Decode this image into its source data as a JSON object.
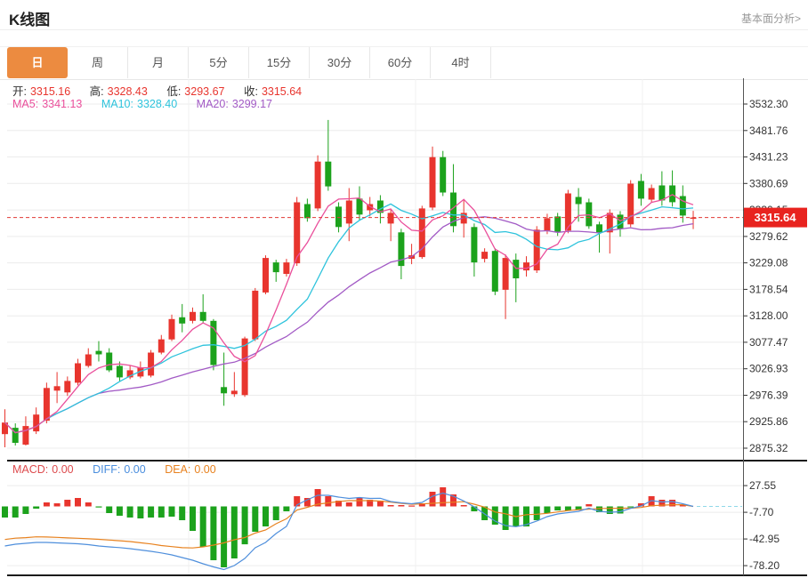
{
  "header": {
    "title": "K线图",
    "link": "基本面分析>"
  },
  "tabs": {
    "items": [
      "日",
      "周",
      "月",
      "5分",
      "15分",
      "30分",
      "60分",
      "4时"
    ],
    "selected": "日"
  },
  "info": {
    "open_label": "开:",
    "open": "3315.16",
    "high_label": "高:",
    "high": "3328.43",
    "low_label": "低:",
    "low": "3293.67",
    "close_label": "收:",
    "close": "3315.64",
    "ma5_label": "MA5:",
    "ma5": "3341.13",
    "ma10_label": "MA10:",
    "ma10": "3328.40",
    "ma20_label": "MA20:",
    "ma20": "3299.17"
  },
  "macd_info": {
    "macd_label": "MACD:",
    "macd": "0.00",
    "diff_label": "DIFF:",
    "diff": "0.00",
    "dea_label": "DEA:",
    "dea": "0.00"
  },
  "price_tag": "3315.64",
  "colors": {
    "up": "#e8352e",
    "down": "#1ca21c",
    "ma5": "#ea4f9b",
    "ma10": "#2ec3dc",
    "ma20": "#a25ac5",
    "diff": "#4f8fdc",
    "dea": "#e8821f",
    "tab_accent": "#ec8b40",
    "price_tag_bg": "#e8231f",
    "dashed_line": "#e03a34",
    "grid": "#ececec",
    "axis": "#555"
  },
  "chart_data": {
    "type": "candlestick",
    "title": "K线图 日线",
    "current_price": 3315.64,
    "price_axis_ticks": [
      "3532.30",
      "3481.76",
      "3431.23",
      "3380.69",
      "3330.15",
      "3279.62",
      "3229.08",
      "3178.54",
      "3128.00",
      "3077.47",
      "3026.93",
      "2976.39",
      "2925.86",
      "2875.32"
    ],
    "macd_axis_ticks": [
      "27.55",
      "-7.70",
      "-42.95",
      "-78.20"
    ],
    "last_ohlc": {
      "open": 3315.16,
      "high": 3328.43,
      "low": 3293.67,
      "close": 3315.64
    },
    "ma_last": {
      "ma5": 3341.13,
      "ma10": 3328.4,
      "ma20": 3299.17
    },
    "candles": [
      [
        2902.3,
        2949.6,
        2877.1,
        2924.3
      ],
      [
        2914.2,
        2922.7,
        2880.5,
        2885.5
      ],
      [
        2882.2,
        2936.2,
        2880.5,
        2917.6
      ],
      [
        2907.5,
        2953.1,
        2902.3,
        2939.6
      ],
      [
        2927.7,
        3000.4,
        2922.7,
        2990.2
      ],
      [
        2985.1,
        3020.6,
        2961.5,
        2993.6
      ],
      [
        2981.8,
        3012.2,
        2975.0,
        3003.7
      ],
      [
        3000.4,
        3046.0,
        2995.3,
        3037.5
      ],
      [
        3032.4,
        3066.2,
        3029.1,
        3054.4
      ],
      [
        3061.1,
        3079.7,
        3040.9,
        3054.4
      ],
      [
        3057.8,
        3066.2,
        3020.6,
        3024.0
      ],
      [
        3032.4,
        3040.9,
        3003.7,
        3010.5
      ],
      [
        3010.5,
        3034.1,
        3007.1,
        3024.0
      ],
      [
        3012.2,
        3040.9,
        3008.8,
        3029.1
      ],
      [
        3013.9,
        3062.8,
        3010.5,
        3057.8
      ],
      [
        3057.8,
        3091.5,
        3054.4,
        3083.1
      ],
      [
        3083.1,
        3130.4,
        3079.7,
        3121.9
      ],
      [
        3125.3,
        3150.6,
        3096.6,
        3113.5
      ],
      [
        3118.5,
        3143.9,
        3113.5,
        3135.4
      ],
      [
        3135.4,
        3169.2,
        3113.5,
        3118.5
      ],
      [
        3118.5,
        3121.9,
        3024.0,
        3034.1
      ],
      [
        2991.9,
        3057.8,
        2956.4,
        2980.1
      ],
      [
        2978.4,
        3020.6,
        2973.3,
        2985.1
      ],
      [
        2976.7,
        3088.2,
        2973.3,
        3084.8
      ],
      [
        3083.1,
        3181.0,
        3079.7,
        3176.0
      ],
      [
        3172.6,
        3243.5,
        3169.2,
        3238.4
      ],
      [
        3230.0,
        3235.1,
        3192.9,
        3211.4
      ],
      [
        3208.1,
        3236.8,
        3203.0,
        3230.0
      ],
      [
        3228.3,
        3354.9,
        3223.3,
        3344.8
      ],
      [
        3341.4,
        3351.6,
        3307.7,
        3314.4
      ],
      [
        3333.0,
        3434.3,
        3327.9,
        3422.5
      ],
      [
        3422.5,
        3501.9,
        3366.8,
        3375.2
      ],
      [
        3336.4,
        3344.8,
        3287.4,
        3297.5
      ],
      [
        3304.3,
        3371.9,
        3270.5,
        3348.2
      ],
      [
        3351.6,
        3375.2,
        3311.0,
        3321.2
      ],
      [
        3329.6,
        3354.9,
        3317.8,
        3341.4
      ],
      [
        3348.2,
        3358.3,
        3304.3,
        3324.6
      ],
      [
        3304.3,
        3331.3,
        3270.5,
        3324.6
      ],
      [
        3287.4,
        3294.1,
        3197.9,
        3223.3
      ],
      [
        3236.8,
        3265.4,
        3226.6,
        3243.5
      ],
      [
        3240.1,
        3338.1,
        3236.8,
        3333.0
      ],
      [
        3334.7,
        3451.2,
        3329.6,
        3431.0
      ],
      [
        3431.0,
        3442.8,
        3356.6,
        3363.4
      ],
      [
        3363.4,
        3417.5,
        3287.4,
        3299.2
      ],
      [
        3304.3,
        3349.9,
        3277.3,
        3324.6
      ],
      [
        3297.5,
        3304.3,
        3203.0,
        3230.0
      ],
      [
        3236.8,
        3257.0,
        3230.0,
        3250.3
      ],
      [
        3251.9,
        3257.0,
        3167.5,
        3174.3
      ],
      [
        3177.7,
        3245.2,
        3121.9,
        3238.4
      ],
      [
        3235.1,
        3246.9,
        3154.0,
        3199.6
      ],
      [
        3214.8,
        3241.8,
        3203.0,
        3230.0
      ],
      [
        3214.8,
        3299.2,
        3209.7,
        3292.5
      ],
      [
        3290.8,
        3322.9,
        3284.0,
        3314.4
      ],
      [
        3317.8,
        3324.6,
        3280.6,
        3287.4
      ],
      [
        3290.8,
        3368.5,
        3285.7,
        3361.7
      ],
      [
        3354.9,
        3371.9,
        3307.7,
        3341.4
      ],
      [
        3344.8,
        3351.6,
        3294.1,
        3299.2
      ],
      [
        3302.6,
        3307.7,
        3248.6,
        3287.4
      ],
      [
        3287.4,
        3331.3,
        3246.9,
        3324.6
      ],
      [
        3321.2,
        3327.9,
        3279.0,
        3294.1
      ],
      [
        3302.6,
        3387.0,
        3297.5,
        3380.3
      ],
      [
        3385.4,
        3398.9,
        3338.1,
        3351.6
      ],
      [
        3349.9,
        3378.6,
        3344.8,
        3371.9
      ],
      [
        3376.9,
        3403.9,
        3338.1,
        3348.2
      ],
      [
        3376.9,
        3405.6,
        3336.4,
        3344.8
      ],
      [
        3356.6,
        3376.9,
        3305.9,
        3319.5
      ],
      [
        3315.16,
        3328.43,
        3293.67,
        3315.64
      ]
    ],
    "macd_hist": [
      -14.7,
      -14.7,
      -10,
      -2.9,
      5.3,
      4.1,
      8.8,
      11.2,
      5.3,
      -0.6,
      -8.8,
      -12.3,
      -14.7,
      -15.9,
      -14.7,
      -14.7,
      -13.5,
      -18.2,
      -32.3,
      -53.5,
      -71.1,
      -80.5,
      -68.7,
      -50,
      -33.5,
      -26.4,
      -18.2,
      -6.5,
      13.5,
      11.2,
      22.9,
      13.5,
      7.6,
      5.3,
      11.2,
      8.8,
      7.6,
      1.8,
      1.8,
      1.2,
      4.1,
      19.4,
      25.3,
      15.9,
      1.8,
      -6.5,
      -18.2,
      -24.1,
      -31.1,
      -26.4,
      -26.4,
      -18.2,
      -8.8,
      -5.3,
      -5.3,
      -4.1,
      2.9,
      -7.6,
      -10,
      -9.4,
      -0.5,
      4.1,
      13.5,
      8.8,
      8.8,
      2.9,
      0
    ],
    "diff_series": [
      -52.3,
      -49.9,
      -48.8,
      -47.6,
      -47.6,
      -48.2,
      -48.8,
      -49.4,
      -50.5,
      -52.3,
      -53.5,
      -54.4,
      -55.8,
      -57.6,
      -59.3,
      -61.5,
      -64,
      -67.6,
      -71.1,
      -75.8,
      -79.9,
      -83.4,
      -78.1,
      -68.7,
      -54.6,
      -47.6,
      -35.8,
      -26.4,
      2,
      8.8,
      14.7,
      14.7,
      12.3,
      10.6,
      11.8,
      10.6,
      10.8,
      6.5,
      4.7,
      3.5,
      5.3,
      13.5,
      17.6,
      13.5,
      7.2,
      -0.6,
      -10,
      -19.4,
      -25.3,
      -26.8,
      -24.1,
      -19.4,
      -13.5,
      -10,
      -8.2,
      -6.5,
      -2.4,
      -6.5,
      -7.6,
      -7.1,
      -2.6,
      0.6,
      7.6,
      5.9,
      6.5,
      3.5,
      0
    ],
    "dea_series": [
      -43.7,
      -42,
      -41.2,
      -40.2,
      -40.4,
      -40.9,
      -41.6,
      -42.1,
      -42.8,
      -43.5,
      -44.4,
      -45.4,
      -46.4,
      -48,
      -49.6,
      -51.7,
      -53.1,
      -54.5,
      -54.9,
      -53.5,
      -51.1,
      -48.2,
      -44.1,
      -41.1,
      -35.3,
      -31.1,
      -22.9,
      -16.3,
      -4.7,
      -1.2,
      2.9,
      4.7,
      6.5,
      7.6,
      7.6,
      7.6,
      7.1,
      5.6,
      4.1,
      2.9,
      3.3,
      4.1,
      4.9,
      5.5,
      6.2,
      2.9,
      -0.9,
      -7.3,
      -9.8,
      -13.5,
      -10.9,
      -10.3,
      -9.2,
      -7.3,
      -5.5,
      -4.4,
      -3.8,
      -2.7,
      -2.6,
      -2.4,
      -2.4,
      -1.4,
      0.9,
      1.6,
      2.2,
      2.2,
      0
    ]
  }
}
